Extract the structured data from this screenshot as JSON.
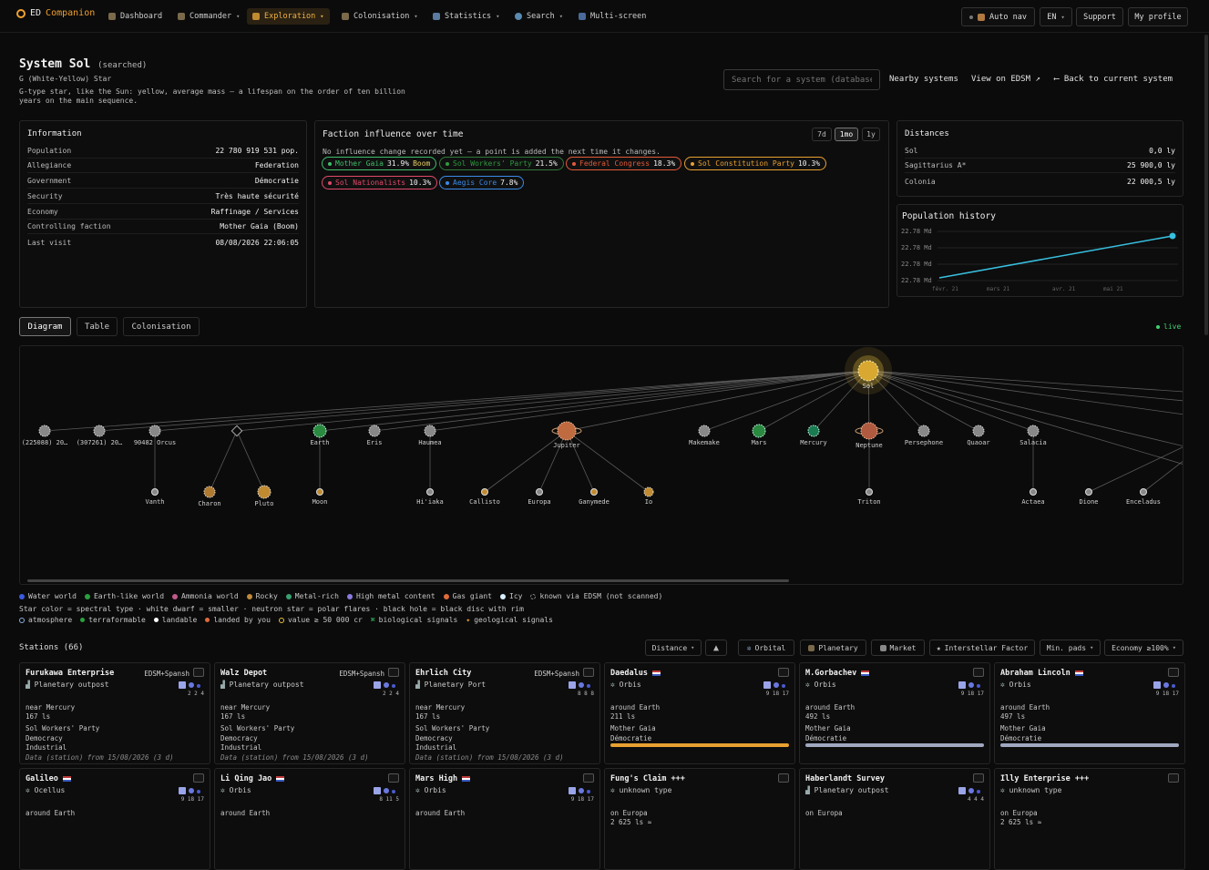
{
  "nav": {
    "logo_a": "ED",
    "logo_b": "Companion",
    "items": [
      "Dashboard",
      "Commander",
      "Exploration",
      "Colonisation",
      "Statistics",
      "Search",
      "Multi-screen"
    ],
    "auto_nav": "Auto nav",
    "lang": "EN",
    "support": "Support",
    "profile": "My profile"
  },
  "system": {
    "name": "System Sol",
    "tag": "(searched)",
    "star": "G (White-Yellow) Star",
    "desc1": "G-type star, like the Sun: yellow, average mass — a lifespan on the order of ten billion",
    "desc2": "years on the main sequence.",
    "search_placeholder": "Search for a system (database)",
    "nearby": "Nearby systems",
    "edsm": "View on EDSM ↗",
    "back": "⟵ Back to current system"
  },
  "info": {
    "title": "Information",
    "rows": [
      {
        "k": "Population",
        "v": "22 780 919 531 pop."
      },
      {
        "k": "Allegiance",
        "v": "Federation"
      },
      {
        "k": "Government",
        "v": "Démocratie"
      },
      {
        "k": "Security",
        "v": "Très haute sécurité"
      },
      {
        "k": "Economy",
        "v": "Raffinage / Services"
      },
      {
        "k": "Controlling faction",
        "v": "Mother Gaia (Boom)"
      },
      {
        "k": "Last visit",
        "v": "08/08/2026 22:06:05"
      }
    ]
  },
  "faction": {
    "title": "Faction influence over time",
    "ranges": [
      "7d",
      "1mo",
      "1y"
    ],
    "note": "No influence change recorded yet — a point is added the next time it changes.",
    "chips": [
      {
        "name": "Mother Gaia",
        "val": "31.9%",
        "extra": "Boom",
        "color": "#3fbf6a"
      },
      {
        "name": "Sol Workers' Party",
        "val": "21.5%",
        "extra": "",
        "color": "#3fa84f"
      },
      {
        "name": "Federal Congress",
        "val": "18.3%",
        "extra": "",
        "color": "#e25a3a"
      },
      {
        "name": "Sol Constitution Party",
        "val": "10.3%",
        "extra": "",
        "color": "#e8a030"
      },
      {
        "name": "Sol Nationalists",
        "val": "10.3%",
        "extra": "",
        "color": "#e04a6a"
      },
      {
        "name": "Aegis Core",
        "val": "7.8%",
        "extra": "",
        "color": "#3a8ae8"
      }
    ]
  },
  "distances": {
    "title": "Distances",
    "rows": [
      {
        "k": "Sol",
        "v": "0,0 ly"
      },
      {
        "k": "Sagittarius A*",
        "v": "25 900,0 ly"
      },
      {
        "k": "Colonia",
        "v": "22 000,5 ly"
      }
    ]
  },
  "pop_history": {
    "title": "Population history",
    "yticks": [
      "22.78 Md",
      "22.78 Md",
      "22.78 Md",
      "22.78 Md"
    ],
    "xticks": [
      "févr. 21",
      "mars 21",
      "avr. 21",
      "mai 21"
    ],
    "line_color": "#38c0e0"
  },
  "tabs": [
    "Diagram",
    "Table",
    "Colonisation"
  ],
  "live": "live",
  "bodies": {
    "star": "Sol",
    "planets": [
      "(225088) 20…",
      "(307261) 20…",
      "90482 Orcus",
      "",
      "Earth",
      "Eris",
      "Haumea",
      "Jupiter",
      "Makemake",
      "Mars",
      "Mercury",
      "Neptune",
      "Persephone",
      "Quaoar",
      "Salacia"
    ],
    "moons": [
      "Vanth",
      "Charon",
      "Pluto",
      "Moon",
      "Hi'iaka",
      "Callisto",
      "Europa",
      "Ganymede",
      "Io",
      "Triton",
      "Actaea",
      "Dione",
      "Enceladus"
    ]
  },
  "legend": {
    "line1": [
      {
        "t": "Water world",
        "c": "#3a5ae0"
      },
      {
        "t": "Earth-like world",
        "c": "#2aa040"
      },
      {
        "t": "Ammonia world",
        "c": "#c05a8a"
      },
      {
        "t": "Rocky",
        "c": "#c08a3a"
      },
      {
        "t": "Metal-rich",
        "c": "#3aa070"
      },
      {
        "t": "High metal content",
        "c": "#8a7ae0"
      },
      {
        "t": "Gas giant",
        "c": "#e06a3a"
      },
      {
        "t": "Icy",
        "c": "#d8f0ff"
      },
      {
        "t": "known via EDSM (not scanned)",
        "c": "#888"
      }
    ],
    "line2": "Star color = spectral type · white dwarf = smaller · neutron star = polar flares · black hole = black disc with rim",
    "line3": [
      "atmosphere",
      "terraformable",
      "landable",
      "landed by you",
      "value ≥ 50 000 cr",
      "biological signals",
      "geological signals"
    ]
  },
  "stations": {
    "title": "Stations (66)",
    "sort": "Distance",
    "filters": [
      "Orbital",
      "Planetary",
      "Market",
      "Interstellar Factor",
      "Min. pads",
      "Economy ≥100%"
    ],
    "cards": [
      {
        "name": "Furukawa Enterprise",
        "src": "EDSM+Spansh",
        "type": "Planetary outpost",
        "pads": "2 2 4",
        "l1": "near Mercury",
        "l2": "167 ls",
        "l3": "Sol Workers' Party",
        "l4": "Democracy",
        "l5": "Industrial",
        "l6": "Data (station) from 15/08/2026 (3 d)",
        "bar": ""
      },
      {
        "name": "Walz Depot",
        "src": "EDSM+Spansh",
        "type": "Planetary outpost",
        "pads": "2 2 4",
        "l1": "near Mercury",
        "l2": "167 ls",
        "l3": "Sol Workers' Party",
        "l4": "Democracy",
        "l5": "Industrial",
        "l6": "Data (station) from 15/08/2026 (3 d)",
        "bar": ""
      },
      {
        "name": "Ehrlich City",
        "src": "EDSM+Spansh",
        "type": "Planetary Port",
        "pads": "8 8 8",
        "l1": "near Mercury",
        "l2": "167 ls",
        "l3": "Sol Workers' Party",
        "l4": "Democracy",
        "l5": "Industrial",
        "l6": "Data (station) from 15/08/2026 (3 d)",
        "bar": ""
      },
      {
        "name": "Daedalus",
        "src": "",
        "type": "Orbis",
        "pads": "9 18 17",
        "l1": "around Earth",
        "l2": "211 ls",
        "l3": "Mother Gaia",
        "l4": "Démocratie",
        "l5": "",
        "l6": "",
        "bar": "#e8a030"
      },
      {
        "name": "M.Gorbachev",
        "src": "",
        "type": "Orbis",
        "pads": "9 18 17",
        "l1": "around Earth",
        "l2": "492 ls",
        "l3": "Mother Gaia",
        "l4": "Démocratie",
        "l5": "",
        "l6": "",
        "bar": "#a0a8c0"
      },
      {
        "name": "Abraham Lincoln",
        "src": "",
        "type": "Orbis",
        "pads": "9 18 17",
        "l1": "around Earth",
        "l2": "497 ls",
        "l3": "Mother Gaia",
        "l4": "Démocratie",
        "l5": "",
        "l6": "",
        "bar": "#a0a8c0"
      },
      {
        "name": "Galileo",
        "src": "",
        "type": "Ocellus",
        "pads": "9 18 17",
        "l1": "around Earth",
        "l2": "",
        "l3": "",
        "l4": "",
        "l5": "",
        "l6": "",
        "bar": ""
      },
      {
        "name": "Li Qing Jao",
        "src": "",
        "type": "Orbis",
        "pads": "8 11 5",
        "l1": "around Earth",
        "l2": "",
        "l3": "",
        "l4": "",
        "l5": "",
        "l6": "",
        "bar": ""
      },
      {
        "name": "Mars High",
        "src": "",
        "type": "Orbis",
        "pads": "9 18 17",
        "l1": "around Earth",
        "l2": "",
        "l3": "",
        "l4": "",
        "l5": "",
        "l6": "",
        "bar": ""
      },
      {
        "name": "Fung's Claim +++",
        "src": "",
        "type": "unknown type",
        "pads": "",
        "l1": "on Europa",
        "l2": "2 625 ls ≈",
        "l3": "",
        "l4": "",
        "l5": "",
        "l6": "",
        "bar": ""
      },
      {
        "name": "Haberlandt Survey",
        "src": "",
        "type": "Planetary outpost",
        "pads": "4 4 4",
        "l1": "on Europa",
        "l2": "",
        "l3": "",
        "l4": "",
        "l5": "",
        "l6": "",
        "bar": ""
      },
      {
        "name": "Illy Enterprise +++",
        "src": "",
        "type": "unknown type",
        "pads": "",
        "l1": "on Europa",
        "l2": "2 625 ls ≈",
        "l3": "",
        "l4": "",
        "l5": "",
        "l6": "",
        "bar": ""
      }
    ]
  }
}
